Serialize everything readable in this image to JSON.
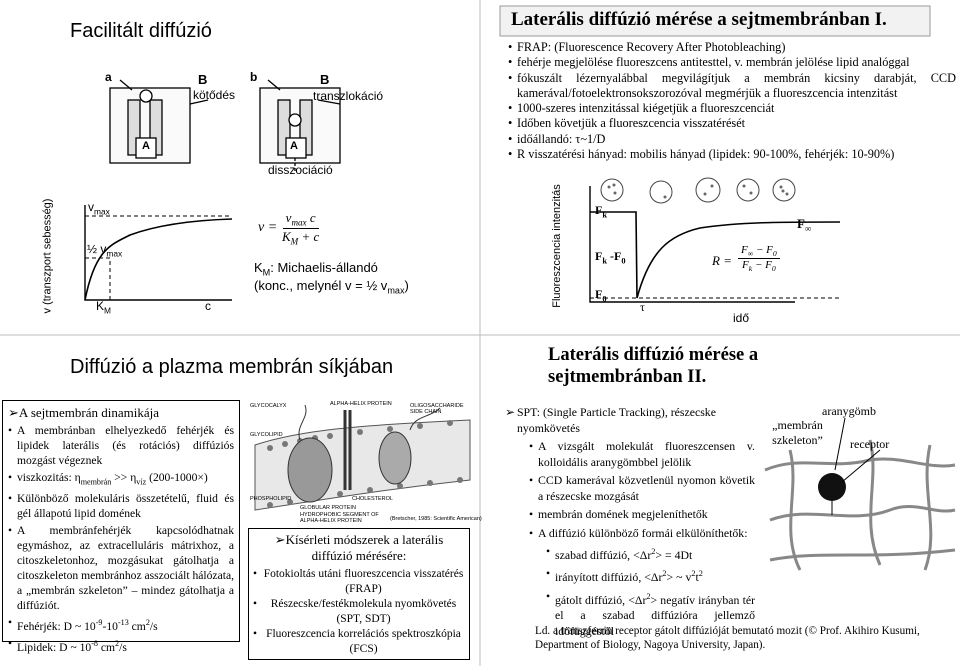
{
  "slide1": {
    "title": "Facilitált diffúzió",
    "figure_labels": [
      "a",
      "B",
      "kötődés",
      "b",
      "B",
      "transzlokáció",
      "A",
      "A",
      "disszociáció"
    ],
    "graph": {
      "y_axis": "v (transzport sebesség)",
      "vmax": [
        "v",
        {
          "sub": "max"
        }
      ],
      "half_vmax": [
        "½ v",
        {
          "sub": "max"
        }
      ],
      "km": [
        "K",
        {
          "sub": "M"
        }
      ],
      "x_axis": "c"
    },
    "formula": {
      "lhs": "v =",
      "numerator": [
        "v",
        {
          "sub": "max"
        },
        " c"
      ],
      "denominator": [
        "K",
        {
          "sub": "M"
        },
        " + c"
      ]
    },
    "note": [
      [
        "K",
        {
          "sub": "M"
        },
        ": Michaelis-állandó"
      ],
      [
        "(konc., melynél v = ½ v",
        {
          "sub": "max"
        },
        ")"
      ]
    ]
  },
  "slide2": {
    "title": "Laterális diffúzió mérése a sejtmembránban I.",
    "bullets": [
      "FRAP: (Fluorescence Recovery After Photobleaching)",
      "fehérje megjelölése fluoreszcens antitesttel, v. membrán jelölése lipid analóggal",
      "fókuszált lézernyalábbal megvilágítjuk a membrán kicsiny darabját, CCD kamerával/fotoelektronsokszorozóval megmérjük a fluoreszcencia intenzitást",
      "1000-szeres intenzitással kiégetjük a fluoreszcenciát",
      "Időben követjük a fluoreszcencia visszatérését",
      "időállandó: τ~1/D",
      "R visszatérési hányad: mobilis hányad (lipidek: 90-100%, fehérjék: 10-90%)"
    ],
    "graph": {
      "y_axis": "Fluoreszcencia intenzitás",
      "fk": [
        "F",
        {
          "sub": "k"
        }
      ],
      "fk_f0": [
        "F",
        {
          "sub": "k"
        },
        " -F",
        {
          "sub": "0"
        }
      ],
      "f0": [
        "F",
        {
          "sub": "0"
        }
      ],
      "tau": "τ",
      "x_axis": "idő",
      "finf": [
        "F",
        {
          "sub": "∞"
        }
      ]
    },
    "formula": {
      "lhs": "R =",
      "numerator": [
        "F",
        {
          "sub": "∞"
        },
        " − F",
        {
          "sub": "0"
        }
      ],
      "denominator": [
        "F",
        {
          "sub": "k"
        },
        " − F",
        {
          "sub": "0"
        }
      ]
    }
  },
  "slide3": {
    "title": "Diffúzió a plazma membrán síkjában",
    "box_title": "A sejtmembrán dinamikája",
    "bullets": [
      "A membránban elhelyezkedő fehérjék és lipidek laterális (és rotációs) diffúziós mozgást végeznek",
      [
        "viszkozitás: η",
        {
          "sub": "membrán"
        },
        " >> η",
        {
          "sub": "víz"
        },
        " (200-1000×)"
      ],
      "Különböző molekuláris összetételű, fluid és gél állapotú lipid domének",
      "A membránfehérjék kapcsolódhatnak egymáshoz, az extracelluláris mátrixhoz, a citoszkeletonhoz, mozgásukat gátolhatja a citoszkeleton membránhoz asszociált hálózata, a „membrán szkeleton” – mindez gátolhatja a diffúziót.",
      [
        "Fehérjék: D ~ 10",
        {
          "sup": "-9"
        },
        "-10",
        {
          "sup": "-13"
        },
        " cm",
        {
          "sup": "2"
        },
        "/s"
      ],
      [
        "Lipidek: D ~ 10",
        {
          "sup": "-8"
        },
        " cm",
        {
          "sup": "2"
        },
        "/s"
      ]
    ],
    "image_labels": [
      "GLYCOCALYX",
      "ALPHA-HELIX PROTEIN",
      "GLYCOLIPID",
      "OLIGOSACCHARIDE SIDE CHAIN",
      "PHOSPHOLIPID",
      "GLOBULAR PROTEIN",
      "CHOLESTEROL",
      "HYDROPHOBIC SEGMENT OF ALPHA-HELIX PROTEIN"
    ],
    "image_credit": "(Bretscher, 1985: Scientific American)",
    "methods_title": "Kísérleti módszerek a laterális diffúzió mérésére:",
    "methods": [
      "Fotokioltás utáni fluoreszcencia visszatérés (FRAP)",
      "Részecske/festékmolekula nyomkövetés (SPT, SDT)",
      "Fluoreszcencia korrelációs spektroszkópia (FCS)"
    ]
  },
  "slide4": {
    "title": "Laterális diffúzió mérése a sejtmembránban II.",
    "bullets": [
      {
        "text": "SPT: (Single Particle Tracking), részecske nyomkövetés",
        "items": [
          "A vizsgált molekulát fluoreszcensen v. kolloidális aranygömbbel jelölik",
          "CCD kamerával közvetlenül nyomon követik a részecske mozgását",
          "membrán domének megjeleníthetők",
          {
            "text": "A diffúzió különböző formái elkülöníthetők:",
            "items": [
              [
                "szabad diffúzió, <Δr",
                {
                  "sup": "2"
                },
                "> = 4Dt"
              ],
              [
                "irányított diffúzió, <Δr",
                {
                  "sup": "2"
                },
                "> ~ v",
                {
                  "sup": "2"
                },
                "t",
                {
                  "sup": "2"
                }
              ],
              [
                "gátolt diffúzió, <Δr",
                {
                  "sup": "2"
                },
                "> negatív irányban tér el a szabad diffúzióra jellemző időfüggéstől"
              ]
            ]
          }
        ]
      }
    ],
    "figure_labels": [
      "„membrán szkeleton”",
      "aranygömb",
      "receptor"
    ],
    "footer": "Ld. a transzferrin receptor gátolt diffúzióját bemutató mozit (© Prof. Akihiro Kusumi, Department of Biology, Nagoya University, Japan)."
  }
}
